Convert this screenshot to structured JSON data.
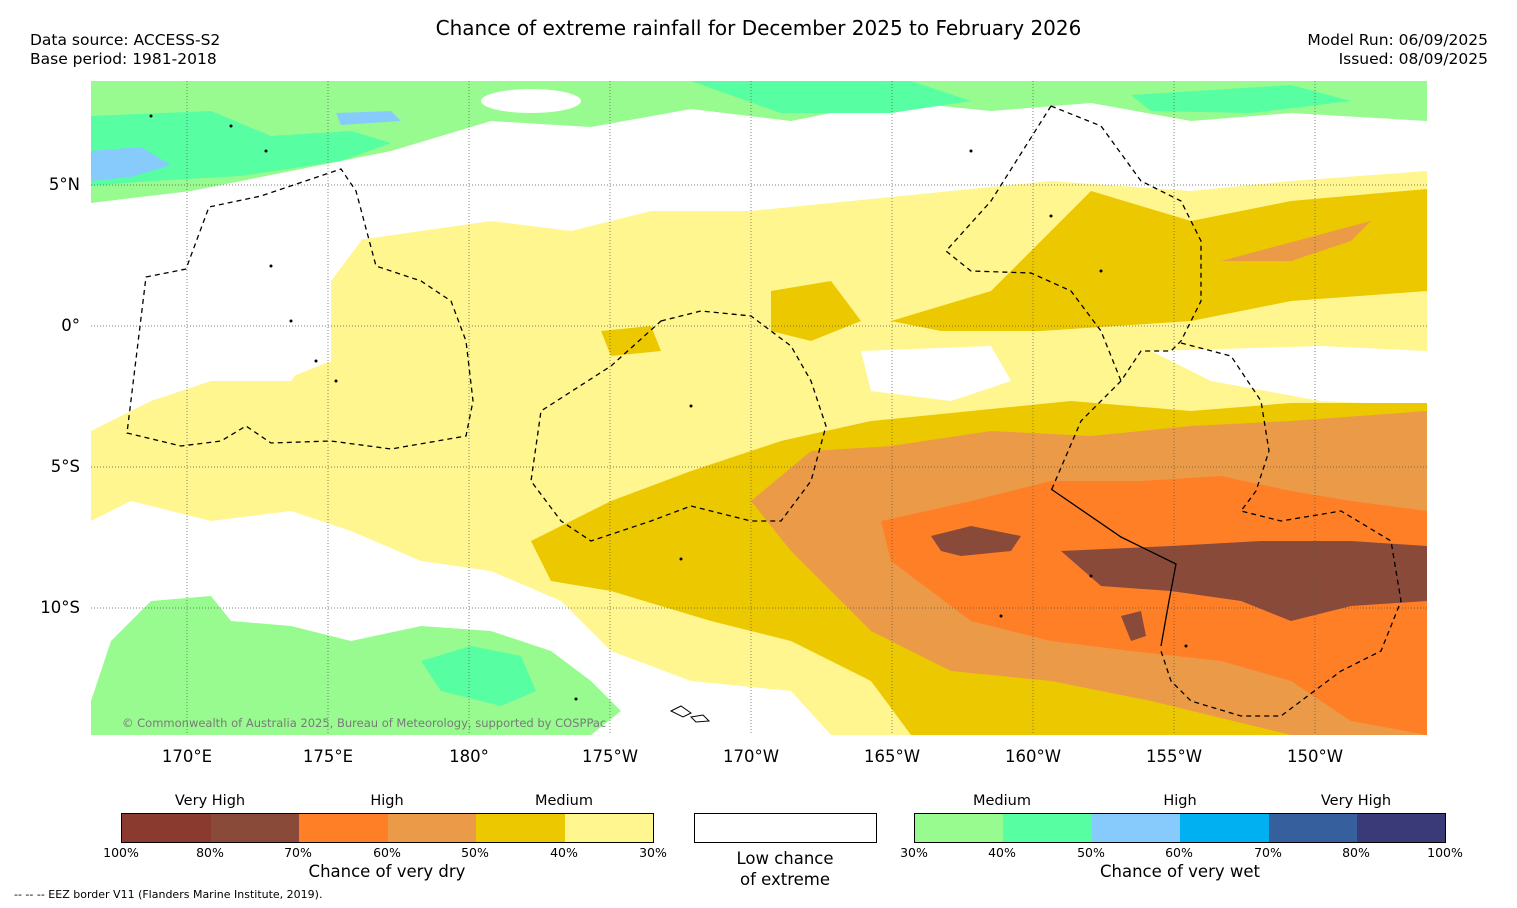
{
  "header": {
    "title": "Chance of extreme rainfall for December 2025 to February 2026",
    "data_source": "Data source: ACCESS-S2",
    "base_period": "Base period: 1981-2018",
    "model_run": "Model Run: 06/09/2025",
    "issued": "Issued: 08/09/2025"
  },
  "map": {
    "lat_labels": [
      "5°N",
      "0°",
      "5°S",
      "10°S"
    ],
    "lon_labels": [
      "170°E",
      "175°E",
      "180°",
      "175°W",
      "170°W",
      "165°W",
      "160°W",
      "155°W",
      "150°W"
    ],
    "copyright": "© Commonwealth of Australia 2025, Bureau of Meteorology, supported by COSPPac"
  },
  "legend": {
    "dry": {
      "headings": [
        "Very High",
        "High",
        "Medium"
      ],
      "colors": [
        "#8b3a30",
        "#8a4a3a",
        "#ff7f27",
        "#eb9a48",
        "#ecc800",
        "#fff68f"
      ],
      "ticks": [
        "100%",
        "80%",
        "70%",
        "60%",
        "50%",
        "40%",
        "30%"
      ],
      "title": "Chance of very dry"
    },
    "low": {
      "color": "#ffffff",
      "title_line1": "Low chance",
      "title_line2": "of extreme"
    },
    "wet": {
      "headings": [
        "Medium",
        "High",
        "Very High"
      ],
      "colors": [
        "#98fb8f",
        "#57fea2",
        "#87cbfc",
        "#00b0f0",
        "#35609d",
        "#3b3a78"
      ],
      "ticks": [
        "30%",
        "40%",
        "50%",
        "60%",
        "70%",
        "80%",
        "100%"
      ],
      "title": "Chance of very wet"
    }
  },
  "footnote": "--  --  -- EEZ border V11 (Flanders Marine Institute, 2019)."
}
